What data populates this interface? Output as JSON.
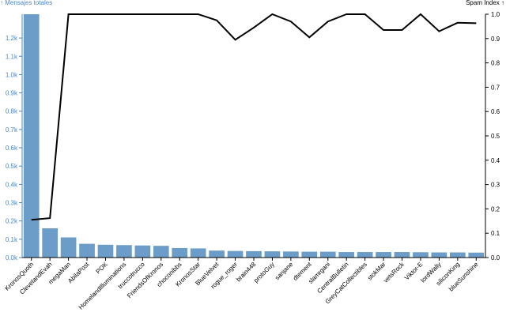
{
  "chart_data": {
    "type": "bar+line",
    "left_axis_label": "↑ Mensajes totales",
    "right_axis_label": "Spam Index ↑",
    "left_ticks": [
      "0.0k",
      "0.1k",
      "0.2k",
      "0.3k",
      "0.4k",
      "0.5k",
      "0.6k",
      "0.7k",
      "0.8k",
      "0.9k",
      "1.0k",
      "1.1k",
      "1.2k"
    ],
    "right_ticks": [
      "0.0",
      "0.1",
      "0.2",
      "0.3",
      "0.4",
      "0.5",
      "0.6",
      "0.7",
      "0.8",
      "0.9",
      "1.0"
    ],
    "left_ylim": [
      0,
      1330
    ],
    "right_ylim": [
      0,
      1.0
    ],
    "categories": [
      "KronosQuoth",
      "ClevelandEvah",
      "megaMan",
      "AbilaPost",
      "POK",
      "HomelandIlluminations",
      "truccotrucco",
      "FriendsOfKronos",
      "choconibbs",
      "KronosStar",
      "BlueVelvet",
      "rogue_roger",
      "brain448",
      "protoGuy",
      "sanjane",
      "dtement",
      "slamrgani",
      "CentralBulletin",
      "GreyCatCollectibles",
      "stokMar",
      "vetsRock",
      "Viktor-E",
      "lordWally",
      "siliconKing",
      "blueSunshine"
    ],
    "bar_series": {
      "name": "Mensajes totales",
      "color": "#6b9dc8",
      "values": [
        1330,
        160,
        110,
        75,
        70,
        68,
        66,
        64,
        52,
        50,
        38,
        36,
        35,
        34,
        33,
        32,
        32,
        30,
        30,
        30,
        30,
        29,
        28,
        28,
        27
      ]
    },
    "line_series": {
      "name": "Spam Index",
      "color": "#000000",
      "values": [
        0.155,
        0.162,
        1.0,
        1.0,
        1.0,
        1.0,
        1.0,
        1.0,
        1.0,
        1.0,
        0.975,
        0.895,
        0.945,
        1.0,
        0.97,
        0.905,
        0.97,
        1.0,
        1.0,
        0.935,
        0.935,
        1.0,
        0.93,
        0.965,
        0.963
      ]
    }
  }
}
